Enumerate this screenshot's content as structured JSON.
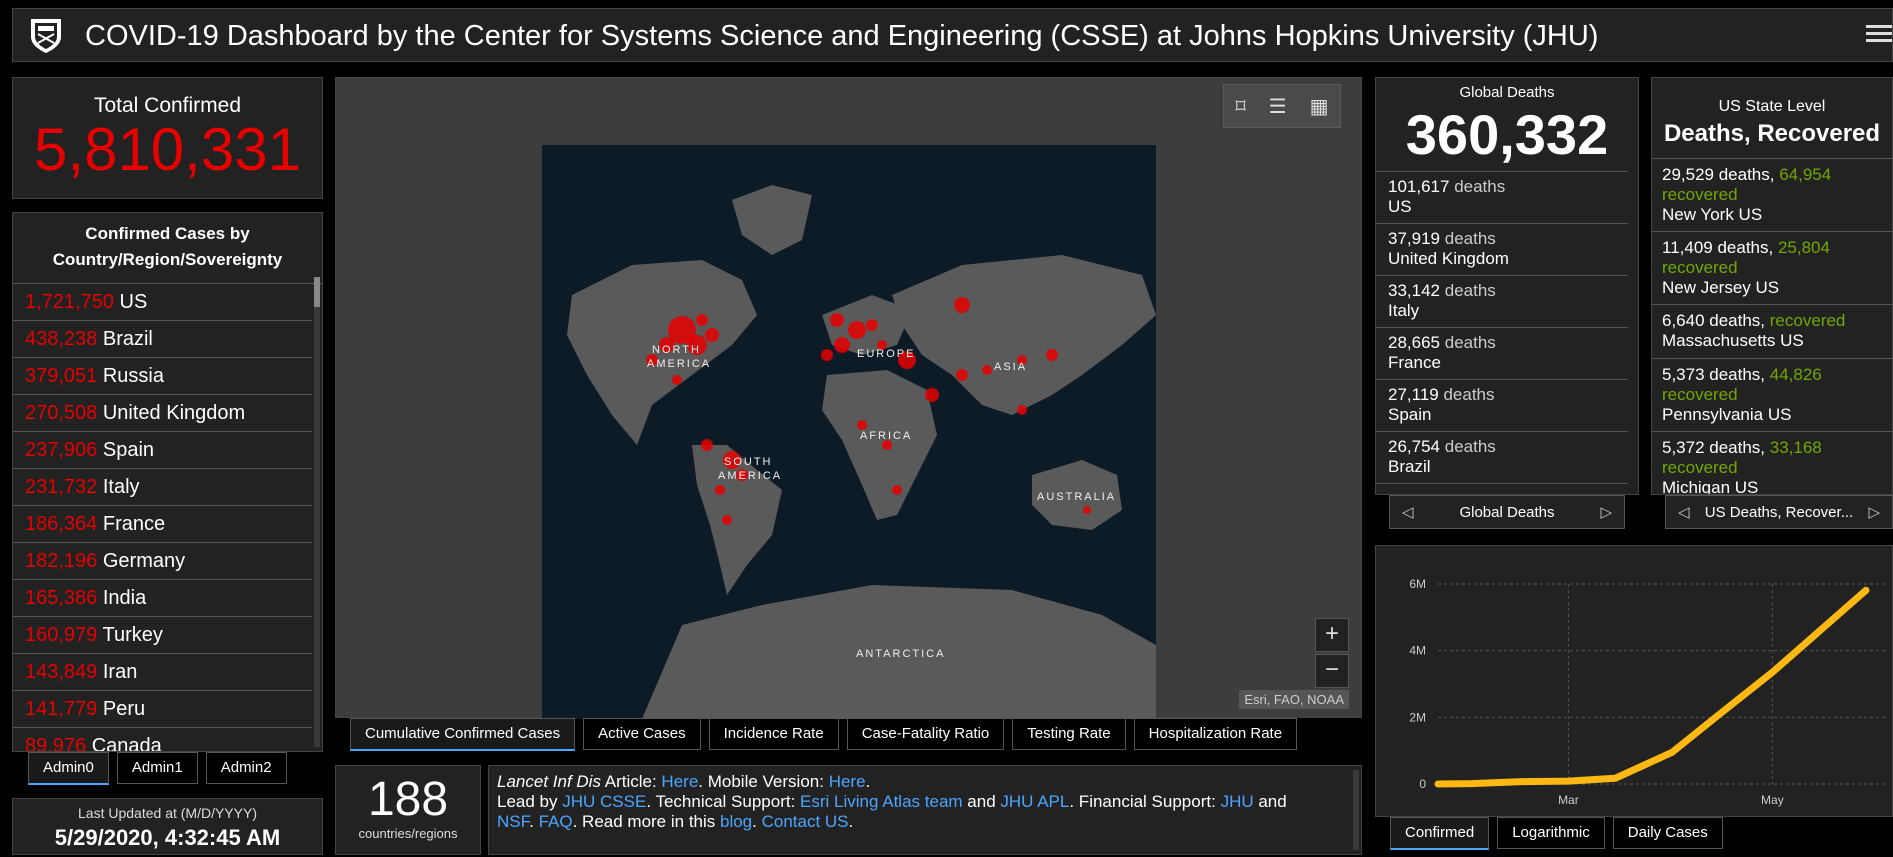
{
  "header": {
    "title": "COVID-19 Dashboard by the Center for Systems Science and Engineering (CSSE) at Johns Hopkins University (JHU)"
  },
  "total_confirmed": {
    "label": "Total Confirmed",
    "value": "5,810,331"
  },
  "country_list": {
    "header": "Confirmed Cases by Country/Region/Sovereignty",
    "items": [
      {
        "count": "1,721,750",
        "name": "US"
      },
      {
        "count": "438,238",
        "name": "Brazil"
      },
      {
        "count": "379,051",
        "name": "Russia"
      },
      {
        "count": "270,508",
        "name": "United Kingdom"
      },
      {
        "count": "237,906",
        "name": "Spain"
      },
      {
        "count": "231,732",
        "name": "Italy"
      },
      {
        "count": "186,364",
        "name": "France"
      },
      {
        "count": "182,196",
        "name": "Germany"
      },
      {
        "count": "165,386",
        "name": "India"
      },
      {
        "count": "160,979",
        "name": "Turkey"
      },
      {
        "count": "143,849",
        "name": "Iran"
      },
      {
        "count": "141,779",
        "name": "Peru"
      },
      {
        "count": "89,976",
        "name": "Canada"
      }
    ]
  },
  "admin_tabs": [
    "Admin0",
    "Admin1",
    "Admin2"
  ],
  "last_updated": {
    "label": "Last Updated at (M/D/YYYY)",
    "value": "5/29/2020, 4:32:45 AM"
  },
  "map": {
    "labels": [
      "NORTH",
      "AMERICA",
      "EUROPE",
      "ASIA",
      "AFRICA",
      "SOUTH",
      "AMERICA",
      "AUSTRALIA",
      "ANTARCTICA"
    ],
    "zoom_in": "+",
    "zoom_out": "−",
    "attribution": "Esri, FAO, NOAA",
    "tools": [
      "bookmark-icon",
      "list-icon",
      "qr-grid-icon"
    ]
  },
  "map_tabs": [
    "Cumulative Confirmed Cases",
    "Active Cases",
    "Incidence Rate",
    "Case-Fatality Ratio",
    "Testing Rate",
    "Hospitalization Rate"
  ],
  "countries_count": {
    "value": "188",
    "label": "countries/regions"
  },
  "info": {
    "line1_a": "Lancet Inf Dis",
    "line1_b": " Article: ",
    "line1_link1": "Here",
    "line1_c": ". Mobile Version: ",
    "line1_link2": "Here",
    "line1_d": ".",
    "line2_a": "Lead by ",
    "line2_link1": "JHU CSSE",
    "line2_b": ". Technical Support: ",
    "line2_link2": "Esri Living Atlas team",
    "line2_c": " and ",
    "line2_link3": "JHU APL",
    "line2_d": ". Financial Support: ",
    "line2_link4": "JHU",
    "line2_e": " and",
    "line3_link1": "NSF",
    "line3_a": ". ",
    "line3_link2": "FAQ",
    "line3_b": ". Read more in this ",
    "line3_link3": "blog",
    "line3_c": ". ",
    "line3_link4": "Contact US",
    "line3_d": "."
  },
  "global_deaths": {
    "label": "Global Deaths",
    "value": "360,332",
    "items": [
      {
        "count": "101,617",
        "unit": "deaths",
        "name": "US"
      },
      {
        "count": "37,919",
        "unit": "deaths",
        "name": "United Kingdom"
      },
      {
        "count": "33,142",
        "unit": "deaths",
        "name": "Italy"
      },
      {
        "count": "28,665",
        "unit": "deaths",
        "name": "France"
      },
      {
        "count": "27,119",
        "unit": "deaths",
        "name": "Spain"
      },
      {
        "count": "26,754",
        "unit": "deaths",
        "name": "Brazil"
      }
    ],
    "pager_label": "Global Deaths"
  },
  "us_state": {
    "label": "US State Level",
    "sub": "Deaths, Recovered",
    "items": [
      {
        "deaths": "29,529 deaths, ",
        "recovered": "64,954",
        "rec_label": "recovered",
        "name": "New York US"
      },
      {
        "deaths": "11,409 deaths, ",
        "recovered": "25,804",
        "rec_label": "recovered",
        "name": "New Jersey US"
      },
      {
        "deaths": "6,640 deaths, ",
        "recovered": "",
        "rec_label": "recovered",
        "name": "Massachusetts US"
      },
      {
        "deaths": "5,373 deaths, ",
        "recovered": "44,826",
        "rec_label": "recovered",
        "name": "Pennsylvania US"
      },
      {
        "deaths": "5,372 deaths, ",
        "recovered": "33,168",
        "rec_label": "recovered",
        "name": "Michigan US"
      }
    ],
    "pager_label": "US Deaths, Recover..."
  },
  "chart_tabs": [
    "Confirmed",
    "Logarithmic",
    "Daily Cases"
  ],
  "colors": {
    "accent_red": "#e60000",
    "recovered_green": "#70a800",
    "link_blue": "#4aa6ff",
    "curve_yellow": "#fdb813"
  },
  "chart_data": {
    "type": "line",
    "title": "",
    "xlabel": "",
    "ylabel": "",
    "x_ticks": [
      "Mar",
      "May"
    ],
    "y_ticks": [
      "0",
      "2M",
      "4M",
      "6M"
    ],
    "ylim": [
      0,
      6000000
    ],
    "grid": true,
    "series": [
      {
        "x": [
          "2020-01-22",
          "2020-02-01",
          "2020-02-15",
          "2020-03-01",
          "2020-03-15",
          "2020-04-01",
          "2020-04-15",
          "2020-05-01",
          "2020-05-15",
          "2020-05-29"
        ],
        "values": [
          555,
          12000,
          69000,
          88000,
          170000,
          950000,
          2080000,
          3350000,
          4580000,
          5810331
        ]
      }
    ]
  }
}
